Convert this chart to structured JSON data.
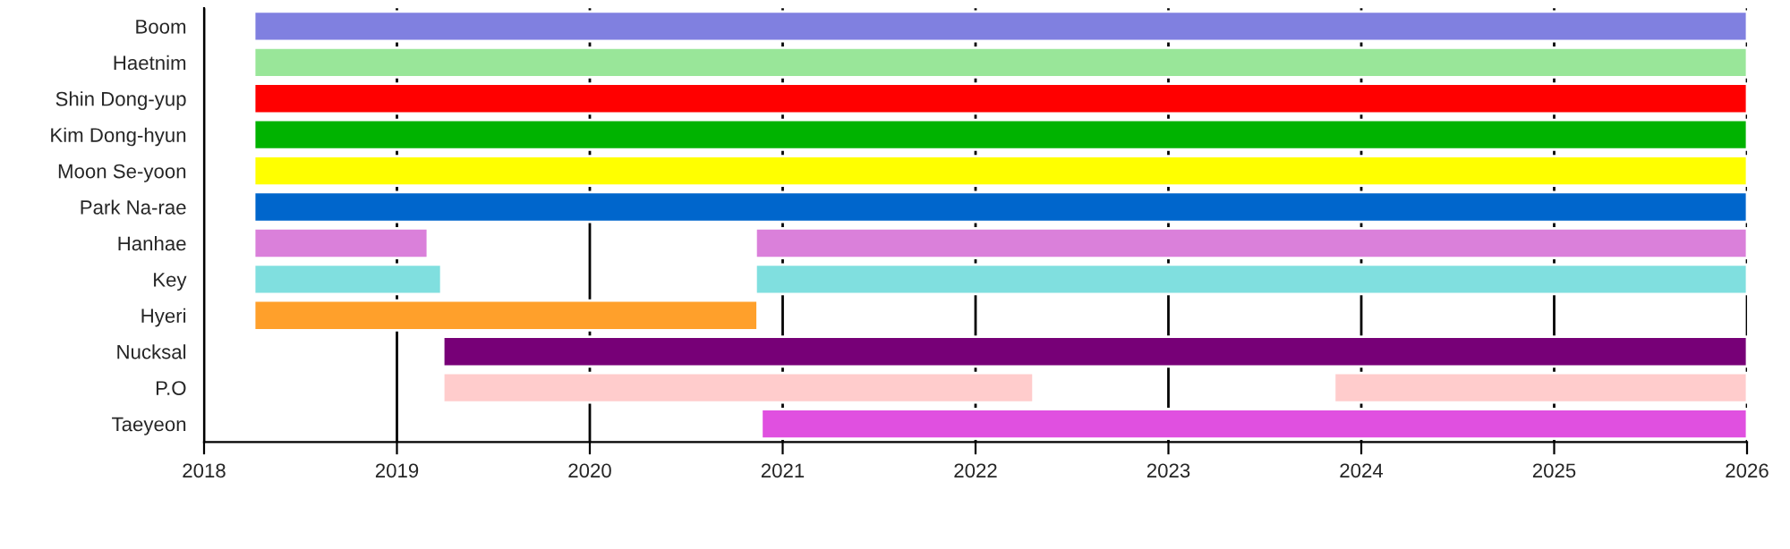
{
  "chart_data": {
    "type": "bar",
    "orientation": "horizontal",
    "categories": [
      "Boom",
      "Haetnim",
      "Shin Dong-yup",
      "Kim Dong-hyun",
      "Moon Se-yoon",
      "Park Na-rae",
      "Hanhae",
      "Key",
      "Hyeri",
      "Nucksal",
      "P.O",
      "Taeyeon"
    ],
    "series": [
      {
        "base": [
          2018.26,
          2018.26,
          2018.26,
          2018.26,
          2018.26,
          2018.26,
          2018.26,
          2018.26,
          2018.26,
          2019.24,
          2019.24,
          2020.89
        ],
        "values": [
          7.74,
          7.74,
          7.74,
          7.74,
          7.74,
          7.74,
          0.9,
          0.97,
          2.61,
          6.76,
          3.06,
          5.11
        ],
        "colors": [
          "#8080e0",
          "#99e699",
          "#ff0000",
          "#00b300",
          "#ffff00",
          "#0066cc",
          "#da80da",
          "#80dfdf",
          "#ffa02b",
          "#770077",
          "#ffcccc",
          "#e050e0"
        ]
      },
      {
        "base": [
          null,
          null,
          null,
          null,
          null,
          null,
          2020.86,
          2020.86,
          null,
          null,
          2023.86,
          null
        ],
        "values": [
          null,
          null,
          null,
          null,
          null,
          null,
          5.14,
          5.14,
          null,
          null,
          2.14,
          null
        ],
        "colors": [
          "#8080e0",
          "#99e699",
          "#ff0000",
          "#00b300",
          "#ffff00",
          "#0066cc",
          "#da80da",
          "#80dfdf",
          "#ffa02b",
          "#770077",
          "#ffcccc",
          "#e050e0"
        ]
      }
    ],
    "xlim": [
      2018,
      2026
    ],
    "xticks": [
      2018,
      2019,
      2020,
      2021,
      2022,
      2023,
      2024,
      2025,
      2026
    ],
    "grid": "x"
  }
}
